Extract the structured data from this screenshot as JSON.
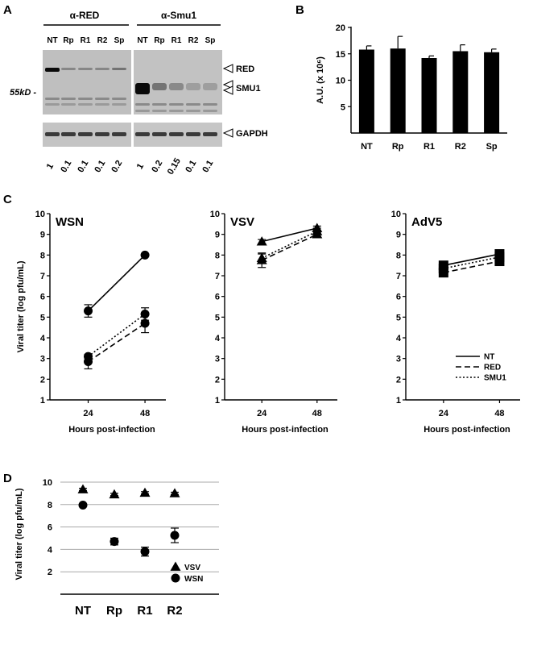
{
  "panels": {
    "A": "A",
    "B": "B",
    "C": "C",
    "D": "D"
  },
  "blot": {
    "antibody_left": "α-RED",
    "antibody_right": "α-Smu1",
    "lanes": [
      "NT",
      "Rp",
      "R1",
      "R2",
      "Sp"
    ],
    "band_labels": [
      "RED",
      "SMU1",
      "GAPDH"
    ],
    "marker": "55kD -",
    "ratios_left": [
      "1",
      "0.1",
      "0.1",
      "0.1",
      "0.2"
    ],
    "ratios_right": [
      "1",
      "0.2",
      "0.15",
      "0.1",
      "0.1"
    ]
  },
  "chart_data": [
    {
      "panel": "B",
      "type": "bar",
      "categories": [
        "NT",
        "Rp",
        "R1",
        "R2",
        "Sp"
      ],
      "values": [
        15.8,
        16.0,
        14.2,
        15.5,
        15.3
      ],
      "errors": [
        0.7,
        2.3,
        0.4,
        1.2,
        0.6
      ],
      "ylabel": "A.U. (x 10⁶)",
      "ylim": [
        0,
        20
      ],
      "yticks": [
        5,
        10,
        15,
        20
      ],
      "color": "#000000"
    },
    {
      "panel": "C",
      "type": "line",
      "title": "WSN",
      "x": [
        24,
        48
      ],
      "xlabel": "Hours post-infection",
      "ylabel": "Viral titer (log pfu/mL)",
      "ylim": [
        1,
        10
      ],
      "yticks": [
        1,
        2,
        3,
        4,
        5,
        6,
        7,
        8,
        9,
        10
      ],
      "marker": "circle",
      "series": [
        {
          "name": "NT",
          "style": "solid",
          "values": [
            5.3,
            8.0
          ],
          "errors": [
            0.3,
            0.0
          ]
        },
        {
          "name": "RED",
          "style": "dashed",
          "values": [
            2.85,
            4.7
          ],
          "errors": [
            0.35,
            0.45
          ]
        },
        {
          "name": "SMU1",
          "style": "dotted",
          "values": [
            3.1,
            5.15
          ],
          "errors": [
            0.1,
            0.3
          ]
        }
      ]
    },
    {
      "panel": "C",
      "type": "line",
      "title": "VSV",
      "x": [
        24,
        48
      ],
      "xlabel": "Hours post-infection",
      "ylim": [
        1,
        10
      ],
      "yticks": [
        1,
        2,
        3,
        4,
        5,
        6,
        7,
        8,
        9,
        10
      ],
      "marker": "triangle",
      "series": [
        {
          "name": "NT",
          "style": "solid",
          "values": [
            8.65,
            9.3
          ],
          "errors": [
            0.1,
            0.1
          ]
        },
        {
          "name": "RED",
          "style": "dashed",
          "values": [
            7.75,
            9.0
          ],
          "errors": [
            0.35,
            0.1
          ]
        },
        {
          "name": "SMU1",
          "style": "dotted",
          "values": [
            7.85,
            9.15
          ],
          "errors": [
            0.2,
            0.15
          ]
        }
      ]
    },
    {
      "panel": "C",
      "type": "line",
      "title": "AdV5",
      "x": [
        24,
        48
      ],
      "xlabel": "Hours post-infection",
      "ylim": [
        1,
        10
      ],
      "yticks": [
        1,
        2,
        3,
        4,
        5,
        6,
        7,
        8,
        9,
        10
      ],
      "marker": "square",
      "series": [
        {
          "name": "NT",
          "style": "solid",
          "values": [
            7.5,
            8.05
          ],
          "errors": [
            0.05,
            0.05
          ]
        },
        {
          "name": "RED",
          "style": "dashed",
          "values": [
            7.15,
            7.7
          ],
          "errors": [
            0.1,
            0.05
          ]
        },
        {
          "name": "SMU1",
          "style": "dotted",
          "values": [
            7.35,
            7.9
          ],
          "errors": [
            0.05,
            0.05
          ]
        }
      ],
      "legend": [
        "NT",
        "RED",
        "SMU1"
      ],
      "legend_position": "bottom-right"
    },
    {
      "panel": "D",
      "type": "scatter",
      "categories": [
        "NT",
        "Rp",
        "R1",
        "R2"
      ],
      "ylabel": "Viral titer (log pfu/mL)",
      "ylim": [
        0,
        10
      ],
      "yticks": [
        2,
        4,
        6,
        8,
        10
      ],
      "grid": true,
      "series": [
        {
          "name": "VSV",
          "marker": "triangle",
          "values": [
            9.35,
            8.9,
            9.05,
            9.0
          ],
          "errors": [
            0.1,
            0.1,
            0.1,
            0.1
          ]
        },
        {
          "name": "WSN",
          "marker": "circle",
          "values": [
            7.95,
            4.7,
            3.8,
            5.25
          ],
          "errors": [
            0.05,
            0.3,
            0.4,
            0.65
          ]
        }
      ],
      "legend_position": "bottom-right"
    }
  ]
}
